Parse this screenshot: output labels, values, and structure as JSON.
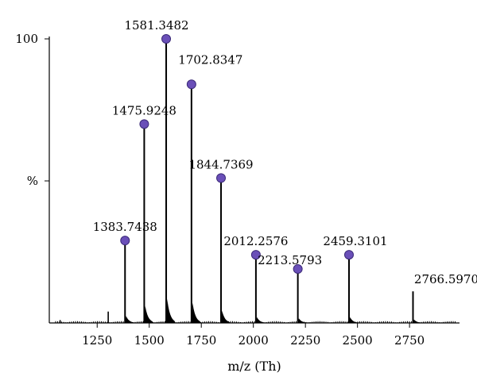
{
  "chart_data": {
    "type": "line",
    "title": "",
    "xlabel": "m/z (Th)",
    "ylabel": "%",
    "xlim": [
      1020,
      2990
    ],
    "ylim": [
      0,
      100
    ],
    "x_ticks": [
      1250,
      1500,
      1750,
      2000,
      2250,
      2500,
      2750
    ],
    "y_ticks": [
      {
        "value": 100,
        "label": "100"
      },
      {
        "value": 50,
        "label": "%"
      }
    ],
    "grid": false,
    "legend": "none",
    "marker_color": "#6a4fb8",
    "line_color": "#000000",
    "peaks": [
      {
        "x": 1383.7438,
        "y": 29,
        "label": "1383.7438"
      },
      {
        "x": 1475.9248,
        "y": 70,
        "label": "1475.9248"
      },
      {
        "x": 1581.3482,
        "y": 100,
        "label": "1581.3482"
      },
      {
        "x": 1702.8347,
        "y": 84,
        "label": "1702.8347"
      },
      {
        "x": 1844.7369,
        "y": 51,
        "label": "1844.7369"
      },
      {
        "x": 2012.2576,
        "y": 24,
        "label": "2012.2576"
      },
      {
        "x": 2213.5793,
        "y": 19,
        "label": "2213.5793"
      },
      {
        "x": 2459.3101,
        "y": 24,
        "label": "2459.3101"
      },
      {
        "x": 2766.597,
        "y": 10,
        "label": "2766.5970",
        "marker": false
      }
    ],
    "minor_peaks": [
      {
        "x": 1303,
        "y": 4
      },
      {
        "x": 1072,
        "y": 1
      }
    ]
  }
}
